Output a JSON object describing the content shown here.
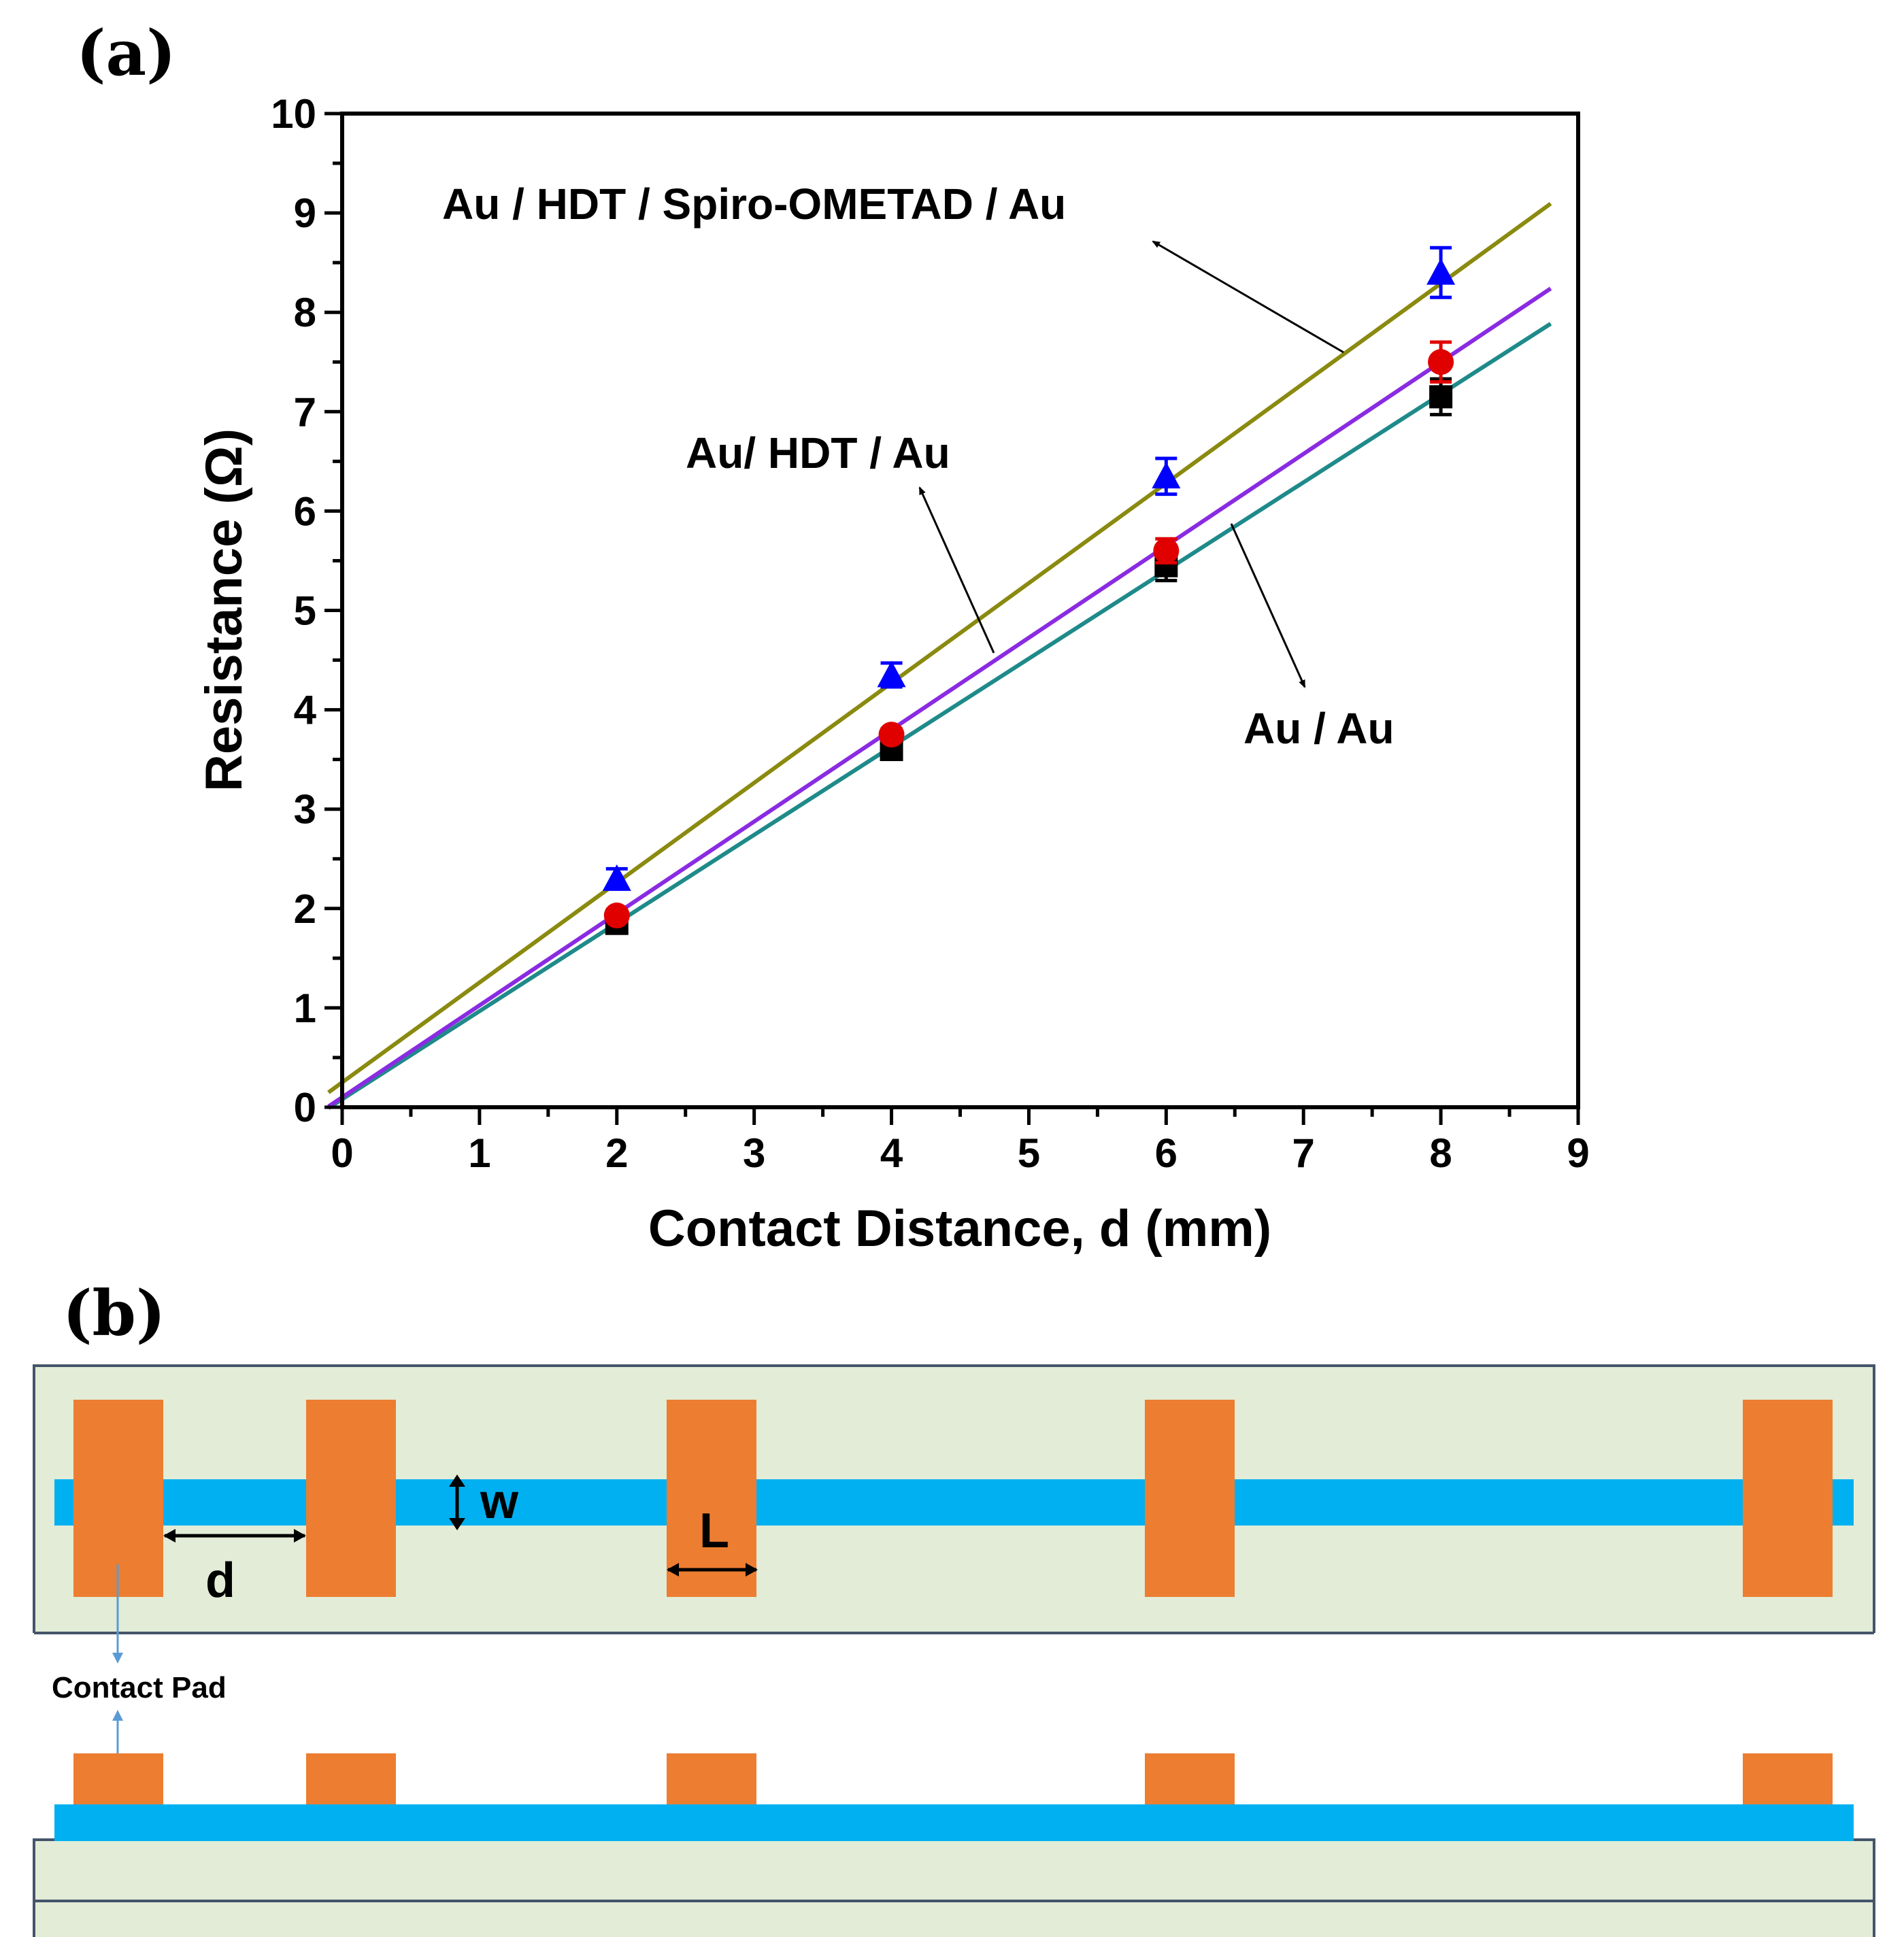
{
  "panel_a": {
    "label": "(a)"
  },
  "panel_b": {
    "label": "(b)"
  },
  "chart_data": {
    "type": "scatter",
    "title": "",
    "xlabel": "Contact Distance, d (mm)",
    "ylabel": "Resistance (Ω)",
    "xlim": [
      0,
      9
    ],
    "ylim": [
      0,
      10
    ],
    "xticks": [
      "0",
      "1",
      "2",
      "3",
      "4",
      "5",
      "6",
      "7",
      "8",
      "9"
    ],
    "yticks": [
      "0",
      "1",
      "2",
      "3",
      "4",
      "5",
      "6",
      "7",
      "8",
      "9",
      "10"
    ],
    "series": [
      {
        "name": "Au / Au",
        "marker": "square",
        "color": "#000000",
        "fit_color": "#1f8a8a",
        "x": [
          2,
          4,
          6,
          8
        ],
        "y": [
          1.85,
          3.6,
          5.45,
          7.15
        ],
        "err": [
          0.08,
          0.08,
          0.15,
          0.18
        ],
        "fit": {
          "slope": 0.887,
          "intercept": 0.08
        }
      },
      {
        "name": "Au/ HDT / Au",
        "marker": "circle",
        "color": "#e00000",
        "fit_color": "#8a2be2",
        "x": [
          2,
          4,
          6,
          8
        ],
        "y": [
          1.93,
          3.75,
          5.6,
          7.5
        ],
        "err": [
          0.06,
          0.06,
          0.12,
          0.2
        ],
        "fit": {
          "slope": 0.925,
          "intercept": 0.1
        }
      },
      {
        "name": "Au / HDT / Spiro-OMETAD / Au",
        "marker": "triangle",
        "color": "#0000ff",
        "fit_color": "#8a8a10",
        "x": [
          2,
          4,
          6,
          8
        ],
        "y": [
          2.3,
          4.35,
          6.35,
          8.4
        ],
        "err": [
          0.1,
          0.12,
          0.18,
          0.25
        ],
        "fit": {
          "slope": 1.005,
          "intercept": 0.25
        }
      }
    ],
    "annotations": [
      "Au / HDT / Spiro-OMETAD / Au",
      "Au/ HDT / Au",
      "Au / Au"
    ]
  },
  "diagram": {
    "width_label": "w",
    "distance_label": "d",
    "length_label": "L",
    "contact_pad_label": "Contact Pad",
    "colors": {
      "substrate": "#e2ecd7",
      "strip": "#00b0f0",
      "pad": "#ed7d31",
      "pad_arrow": "#5b9bd5"
    }
  }
}
